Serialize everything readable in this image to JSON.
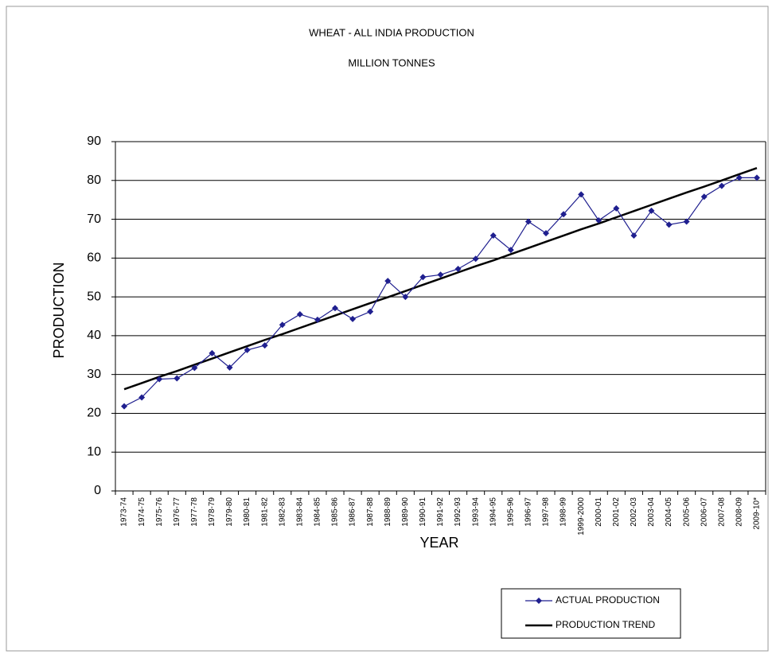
{
  "chart_data": {
    "type": "line",
    "title": "WHEAT - ALL INDIA PRODUCTION",
    "subtitle": "MILLION TONNES",
    "x_label": "YEAR",
    "y_label": "PRODUCTION",
    "categories": [
      "1973-74",
      "1974-75",
      "1975-76",
      "1976-77",
      "1977-78",
      "1978-79",
      "1979-80",
      "1980-81",
      "1981-82",
      "1982-83",
      "1983-84",
      "1984-85",
      "1985-86",
      "1986-87",
      "1987-88",
      "1988-89",
      "1989-90",
      "1990-91",
      "1991-92",
      "1992-93",
      "1993-94",
      "1994-95",
      "1995-96",
      "1996-97",
      "1997-98",
      "1998-99",
      "1999-2000",
      "2000-01",
      "2001-02",
      "2002-03",
      "2003-04",
      "2004-05",
      "2005-06",
      "2006-07",
      "2007-08",
      "2008-09",
      "2009-10*"
    ],
    "series": [
      {
        "name": "ACTUAL PRODUCTION",
        "color": "#1f1f8f",
        "marker": "diamond",
        "values": [
          21.8,
          24.1,
          28.8,
          29.0,
          31.7,
          35.5,
          31.8,
          36.3,
          37.5,
          42.8,
          45.5,
          44.1,
          47.1,
          44.3,
          46.2,
          54.1,
          50.0,
          55.1,
          55.7,
          57.2,
          59.8,
          65.8,
          62.1,
          69.4,
          66.4,
          71.3,
          76.4,
          69.7,
          72.8,
          65.8,
          72.2,
          68.6,
          69.4,
          75.8,
          78.6,
          80.7,
          80.7
        ]
      },
      {
        "name": "PRODUCTION TREND",
        "color": "#000000",
        "values": [
          26.2,
          27.8,
          29.4,
          30.9,
          32.5,
          34.1,
          35.7,
          37.3,
          38.9,
          40.4,
          42.0,
          43.6,
          45.2,
          46.8,
          48.4,
          49.9,
          51.5,
          53.1,
          54.7,
          56.3,
          57.9,
          59.4,
          61.0,
          62.6,
          64.2,
          65.8,
          67.4,
          68.9,
          70.5,
          72.1,
          73.7,
          75.3,
          76.9,
          78.4,
          80.0,
          81.6,
          83.2
        ]
      }
    ],
    "ylim": [
      0,
      90
    ],
    "yticks": [
      0,
      10,
      20,
      30,
      40,
      50,
      60,
      70,
      80,
      90
    ],
    "grid": true
  }
}
